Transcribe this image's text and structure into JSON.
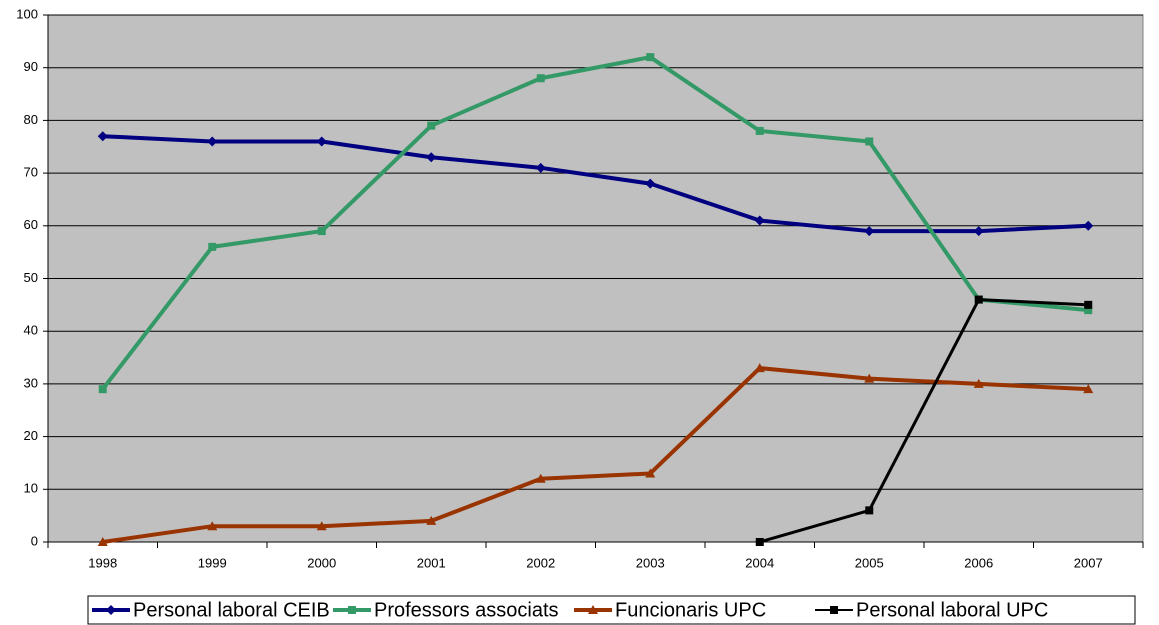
{
  "chart_data": {
    "type": "line",
    "categories": [
      "1998",
      "1999",
      "2000",
      "2001",
      "2002",
      "2003",
      "2004",
      "2005",
      "2006",
      "2007"
    ],
    "series": [
      {
        "name": "Personal laboral CEIB",
        "color": "#000080",
        "marker": "diamond",
        "values": [
          77,
          76,
          76,
          73,
          71,
          68,
          61,
          59,
          59,
          60
        ]
      },
      {
        "name": "Professors associats",
        "color": "#339966",
        "marker": "square",
        "values": [
          29,
          56,
          59,
          79,
          88,
          92,
          78,
          76,
          46,
          44
        ]
      },
      {
        "name": "Funcionaris UPC",
        "color": "#993300",
        "marker": "triangle",
        "values": [
          0,
          3,
          3,
          4,
          12,
          13,
          33,
          31,
          30,
          29
        ]
      },
      {
        "name": "Personal laboral UPC",
        "color": "#000000",
        "marker": "square",
        "values": [
          null,
          null,
          null,
          null,
          null,
          null,
          0,
          6,
          46,
          45
        ]
      }
    ],
    "ylim": [
      0,
      100
    ],
    "yticks": [
      0,
      10,
      20,
      30,
      40,
      50,
      60,
      70,
      80,
      90,
      100
    ],
    "grid": true,
    "legend": "bottom"
  }
}
